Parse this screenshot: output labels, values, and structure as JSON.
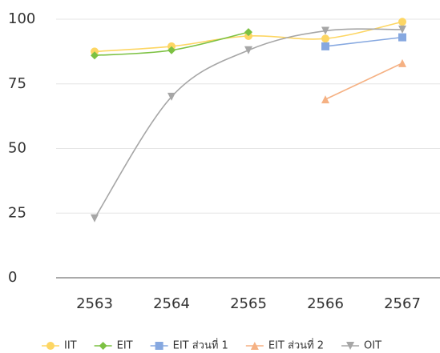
{
  "chart_data": {
    "type": "line",
    "categories": [
      "2563",
      "2564",
      "2565",
      "2566",
      "2567"
    ],
    "series": [
      {
        "name": "IIT",
        "color": "#fdd663",
        "marker": "circle",
        "values": [
          87.5,
          89.5,
          93.5,
          92.5,
          99
        ]
      },
      {
        "name": "EIT",
        "color": "#7cc142",
        "marker": "diamond",
        "values": [
          86,
          88,
          95,
          null,
          null
        ]
      },
      {
        "name": "EIT ส่วนที่ 1",
        "color": "#86a8e0",
        "marker": "square",
        "values": [
          null,
          null,
          null,
          89.5,
          93
        ]
      },
      {
        "name": "EIT ส่วนที่ 2",
        "color": "#f5b183",
        "marker": "triangle-up",
        "values": [
          null,
          null,
          null,
          69,
          83
        ]
      },
      {
        "name": "OIT",
        "color": "#a6a6a6",
        "marker": "triangle-down",
        "values": [
          23,
          70,
          88,
          95.5,
          96
        ]
      }
    ],
    "ylim": [
      0,
      100
    ],
    "yticks": [
      0,
      25,
      50,
      75,
      100
    ],
    "grid": true,
    "smooth": true,
    "legend": "bottom"
  }
}
